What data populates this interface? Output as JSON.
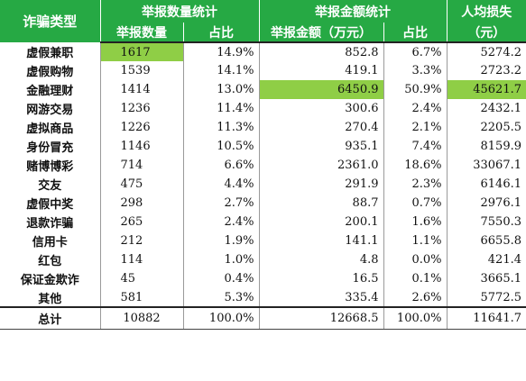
{
  "header": {
    "fraud_type": "诈骗类型",
    "count_group": "举报数量统计",
    "amount_group": "举报金额统计",
    "per_capita": "人均损失",
    "per_capita_unit": "（元）",
    "count_label": "举报数量",
    "count_share": "占比",
    "amount_label": "举报金额（万元）",
    "amount_share": "占比"
  },
  "rows": [
    {
      "type": "虚假兼职",
      "count": "1617",
      "count_pct": "14.9%",
      "amount": "852.8",
      "amount_pct": "6.7%",
      "per_capita": "5274.2"
    },
    {
      "type": "虚假购物",
      "count": "1539",
      "count_pct": "14.1%",
      "amount": "419.1",
      "amount_pct": "3.3%",
      "per_capita": "2723.2"
    },
    {
      "type": "金融理财",
      "count": "1414",
      "count_pct": "13.0%",
      "amount": "6450.9",
      "amount_pct": "50.9%",
      "per_capita": "45621.7"
    },
    {
      "type": "网游交易",
      "count": "1236",
      "count_pct": "11.4%",
      "amount": "300.6",
      "amount_pct": "2.4%",
      "per_capita": "2432.1"
    },
    {
      "type": "虚拟商品",
      "count": "1226",
      "count_pct": "11.3%",
      "amount": "270.4",
      "amount_pct": "2.1%",
      "per_capita": "2205.5"
    },
    {
      "type": "身份冒充",
      "count": "1146",
      "count_pct": "10.5%",
      "amount": "935.1",
      "amount_pct": "7.4%",
      "per_capita": "8159.9"
    },
    {
      "type": "赌博博彩",
      "count": "714",
      "count_pct": "6.6%",
      "amount": "2361.0",
      "amount_pct": "18.6%",
      "per_capita": "33067.1"
    },
    {
      "type": "交友",
      "count": "475",
      "count_pct": "4.4%",
      "amount": "291.9",
      "amount_pct": "2.3%",
      "per_capita": "6146.1"
    },
    {
      "type": "虚假中奖",
      "count": "298",
      "count_pct": "2.7%",
      "amount": "88.7",
      "amount_pct": "0.7%",
      "per_capita": "2976.1"
    },
    {
      "type": "退款诈骗",
      "count": "265",
      "count_pct": "2.4%",
      "amount": "200.1",
      "amount_pct": "1.6%",
      "per_capita": "7550.3"
    },
    {
      "type": "信用卡",
      "count": "212",
      "count_pct": "1.9%",
      "amount": "141.1",
      "amount_pct": "1.1%",
      "per_capita": "6655.8"
    },
    {
      "type": "红包",
      "count": "114",
      "count_pct": "1.0%",
      "amount": "4.8",
      "amount_pct": "0.0%",
      "per_capita": "421.4"
    },
    {
      "type": "保证金欺诈",
      "count": "45",
      "count_pct": "0.4%",
      "amount": "16.5",
      "amount_pct": "0.1%",
      "per_capita": "3665.1"
    },
    {
      "type": "其他",
      "count": "581",
      "count_pct": "5.3%",
      "amount": "335.4",
      "amount_pct": "2.6%",
      "per_capita": "5772.5"
    }
  ],
  "total": {
    "type": "总计",
    "count": "10882",
    "count_pct": "100.0%",
    "amount": "12668.5",
    "amount_pct": "100.0%",
    "per_capita": "11641.7"
  },
  "highlight": {
    "color": "#8fce46",
    "header_color": "#26a944",
    "cells": [
      [
        "rows.0",
        "count"
      ],
      [
        "rows.2",
        "amount"
      ],
      [
        "rows.2",
        "per_capita"
      ]
    ]
  }
}
